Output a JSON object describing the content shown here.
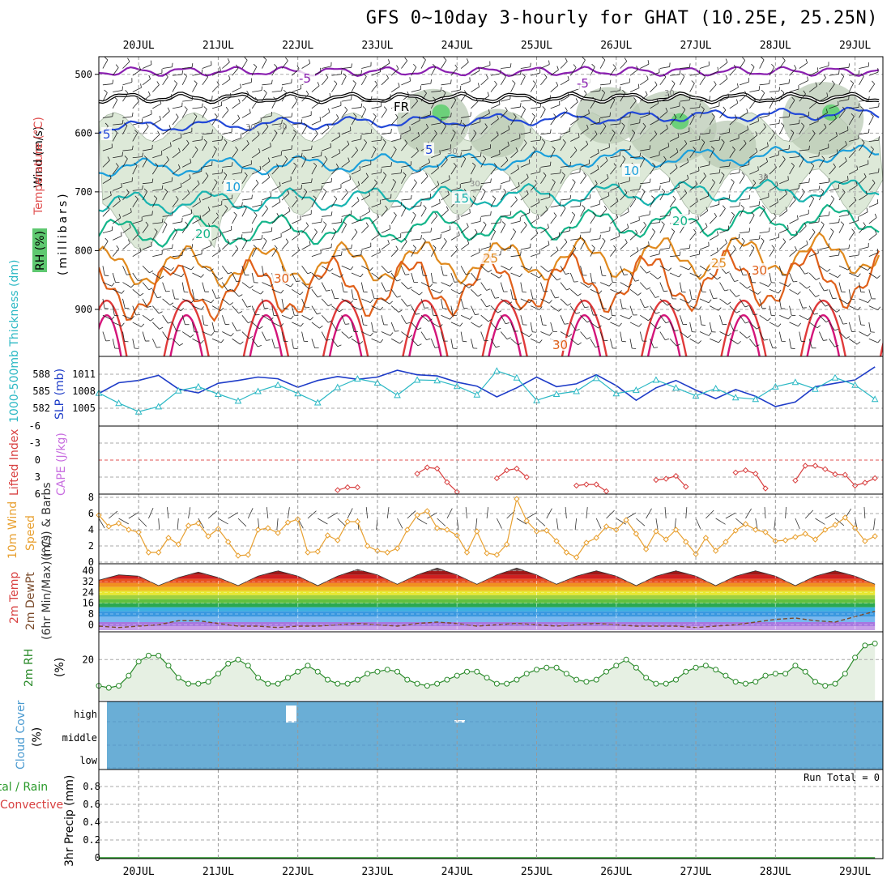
{
  "title": "GFS 0~10day 3-hourly for GHAT (10.25E, 25.25N)",
  "dates": [
    "20JUL",
    "21JUL",
    "22JUL",
    "23JUL",
    "24JUL",
    "25JUL",
    "26JUL",
    "27JUL",
    "28JUL",
    "29JUL"
  ],
  "panels": {
    "upper": {
      "ylabel_wind": "Wind (m/s)",
      "ylabel_temp": "Temperature (°C)",
      "ylabel_rh": "RH (%)",
      "ylabel_mb": "(millibars)",
      "ticks": [
        "500",
        "600",
        "700",
        "800",
        "900"
      ],
      "contour_labels": [
        "-5",
        "-5",
        "FR",
        "5",
        "5",
        "10",
        "10",
        "15",
        "20",
        "20",
        "25",
        "25",
        "30",
        "30",
        "30"
      ],
      "rh_labels": [
        "30",
        "30",
        "30",
        "30",
        "30",
        "30"
      ]
    },
    "slp": {
      "ylabel_thick": "1000-500mb Thickness (dm)",
      "ylabel_slp": "SLP (mb)",
      "left_ticks": [
        "588",
        "585",
        "582"
      ],
      "right_ticks": [
        "1011",
        "1008",
        "1005"
      ]
    },
    "li": {
      "ylabel_li": "Lifted Index",
      "ylabel_cape": "CAPE (J/kg)",
      "ticks": [
        "-6",
        "-3",
        "0",
        "3",
        "6"
      ]
    },
    "wind10": {
      "ylabel_main": "10m Wind",
      "ylabel_speed": "Speed",
      "ylabel_barbs": "(m/s) & Barbs",
      "ticks": [
        "8",
        "6",
        "4",
        "2",
        "0"
      ]
    },
    "temp2m": {
      "ylabel1": "2m Temp",
      "ylabel2": "2m DewPt",
      "ylabel3": "(6hr Min/Max) (°C)",
      "ticks": [
        "40",
        "32",
        "24",
        "16",
        "8",
        "0"
      ]
    },
    "rh2m": {
      "ylabel_main": "2m RH",
      "ylabel_unit": "(%)",
      "ticks": [
        "20"
      ]
    },
    "cloud": {
      "ylabel_main": "Cloud Cover",
      "ylabel_unit": "(%)",
      "levels": [
        "high",
        "middle",
        "low"
      ]
    },
    "precip": {
      "ylabel_total": "Total / Rain",
      "ylabel_conv": "Convective",
      "ylabel_main": "3hr Precip (mm)",
      "run_total": "Run Total = 0",
      "ticks": [
        "0.8",
        "0.6",
        "0.4",
        "0.2",
        "0"
      ]
    }
  },
  "colors": {
    "freezing": "#000000",
    "minus5": "#8a1fb0",
    "plus5": "#2248d8",
    "plus10": "#1ba0dc",
    "plus15": "#18b4b0",
    "plus20": "#15b58a",
    "plus25": "#e08a1e",
    "plus30": "#e0601a",
    "plus35": "#e03a3a",
    "plus40": "#d4157a",
    "rh_fill": "#dde9d8",
    "rh_dark": "#b9cab4",
    "rh_green": "#6cd07a",
    "slp_line": "#1e3cc8",
    "thick_line": "#2bb8c4",
    "li_line": "#d84040",
    "wind_line": "#e8a030",
    "dewpt_line": "#7a4a2a",
    "rh2m_line": "#2a8a2a",
    "rh2m_fill": "#e6f0e3",
    "cloud_fill": "#6aaed6"
  },
  "chart_data": [
    {
      "type": "line",
      "panel": "slp",
      "x_days": [
        19.5,
        19.75,
        20,
        20.25,
        20.5,
        20.75,
        21,
        21.25,
        21.5,
        21.75,
        22,
        22.25,
        22.5,
        22.75,
        23,
        23.25,
        23.5,
        23.75,
        24,
        24.25,
        24.5,
        24.75,
        25,
        25.25,
        25.5,
        25.75,
        26,
        26.25,
        26.5,
        26.75,
        27,
        27.25,
        27.5,
        27.75,
        28,
        28.25,
        28.5,
        28.75,
        29,
        29.25
      ],
      "series": [
        {
          "name": "SLP (mb)",
          "values": [
            1007.6,
            1009.5,
            1009.9,
            1010.8,
            1008.4,
            1007.7,
            1009.4,
            1009.9,
            1010.5,
            1010.2,
            1008.7,
            1009.9,
            1010.6,
            1010.1,
            1010.5,
            1011.7,
            1010.9,
            1010.7,
            1009.6,
            1008.9,
            1007.0,
            1008.6,
            1010.5,
            1008.8,
            1009.3,
            1010.9,
            1009.0,
            1006.4,
            1008.6,
            1009.9,
            1008.2,
            1006.7,
            1008.3,
            1007.1,
            1005.3,
            1006.1,
            1008.8,
            1009.4,
            1010.0,
            1012.3
          ]
        },
        {
          "name": "1000-500mb Thickness (dm)",
          "values": [
            584.7,
            582.9,
            581.4,
            582.3,
            585.1,
            585.8,
            584.5,
            583.3,
            585.0,
            586.1,
            584.6,
            583.0,
            585.7,
            587.2,
            586.5,
            584.3,
            587.0,
            586.9,
            585.9,
            584.4,
            588.6,
            587.4,
            583.4,
            584.5,
            585.0,
            587.3,
            584.6,
            585.2,
            587.0,
            585.6,
            584.2,
            585.5,
            583.9,
            583.6,
            585.8,
            586.6,
            585.4,
            587.4,
            586.1,
            583.6
          ]
        }
      ],
      "ylim_left": [
        580,
        590
      ],
      "ylim_right": [
        1003,
        1013
      ]
    },
    {
      "type": "line",
      "panel": "li",
      "x_days": [
        22.5,
        22.625,
        22.75,
        23.5,
        23.625,
        23.75,
        23.875,
        24,
        24.5,
        24.625,
        24.75,
        24.875,
        25.5,
        25.625,
        25.75,
        25.875,
        26.5,
        26.625,
        26.75,
        26.875,
        27.5,
        27.625,
        27.75,
        27.875,
        28.25,
        28.375,
        28.5,
        28.625,
        28.75,
        28.875,
        29,
        29.125,
        29.25
      ],
      "series": [
        {
          "name": "Lifted Index",
          "values": [
            5.3,
            4.8,
            4.8,
            2.4,
            1.3,
            1.5,
            3.9,
            5.6,
            3.2,
            1.8,
            1.5,
            3.0,
            4.5,
            4.3,
            4.3,
            5.5,
            3.5,
            3.3,
            2.8,
            4.7,
            2.2,
            1.8,
            2.4,
            5.0,
            3.6,
            1.0,
            1.0,
            1.6,
            2.5,
            2.6,
            4.5,
            4.0,
            3.2
          ]
        }
      ],
      "ylim": [
        6,
        -6
      ]
    },
    {
      "type": "line",
      "panel": "wind10",
      "x_days": [
        19.5,
        19.625,
        19.75,
        19.875,
        20,
        20.125,
        20.25,
        20.375,
        20.5,
        20.625,
        20.75,
        20.875,
        21,
        21.125,
        21.25,
        21.375,
        21.5,
        21.625,
        21.75,
        21.875,
        22,
        22.125,
        22.25,
        22.375,
        22.5,
        22.625,
        22.75,
        22.875,
        23,
        23.125,
        23.25,
        23.375,
        23.5,
        23.625,
        23.75,
        23.875,
        24,
        24.125,
        24.25,
        24.375,
        24.5,
        24.625,
        24.75,
        24.875,
        25,
        25.125,
        25.25,
        25.375,
        25.5,
        25.625,
        25.75,
        25.875,
        26,
        26.125,
        26.25,
        26.375,
        26.5,
        26.625,
        26.75,
        26.875,
        27,
        27.125,
        27.25,
        27.375,
        27.5,
        27.625,
        27.75,
        27.875,
        28,
        28.125,
        28.25,
        28.375,
        28.5,
        28.625,
        28.75,
        28.875,
        29,
        29.125,
        29.25
      ],
      "series": [
        {
          "name": "Speed",
          "values": [
            5.8,
            4.4,
            4.8,
            4.0,
            3.7,
            1.2,
            1.2,
            3.0,
            2.2,
            4.5,
            4.8,
            3.2,
            4.1,
            2.5,
            0.8,
            0.9,
            4.0,
            4.2,
            3.6,
            4.9,
            5.3,
            1.2,
            1.3,
            3.3,
            2.7,
            5.0,
            5.0,
            2.0,
            1.4,
            1.2,
            1.7,
            4.0,
            5.8,
            6.3,
            4.2,
            4.0,
            3.3,
            1.2,
            3.8,
            1.1,
            0.9,
            2.2,
            7.8,
            5.1,
            3.8,
            3.9,
            2.6,
            1.2,
            0.6,
            2.4,
            3.0,
            4.4,
            4.0,
            5.2,
            3.5,
            1.6,
            3.8,
            2.8,
            4.0,
            2.5,
            1.0,
            3.0,
            1.4,
            2.5,
            3.9,
            4.7,
            4.0,
            3.7,
            2.6,
            2.7,
            3.1,
            3.5,
            2.8,
            4.0,
            4.6,
            5.5,
            4.2,
            2.6,
            3.2
          ]
        }
      ],
      "ylim": [
        0,
        8
      ]
    },
    {
      "type": "area",
      "panel": "temp2m",
      "x_days": [
        19.5,
        19.75,
        20,
        20.25,
        20.5,
        20.75,
        21,
        21.25,
        21.5,
        21.75,
        22,
        22.25,
        22.5,
        22.75,
        23,
        23.25,
        23.5,
        23.75,
        24,
        24.25,
        24.5,
        24.75,
        25,
        25.25,
        25.5,
        25.75,
        26,
        26.25,
        26.5,
        26.75,
        27,
        27.25,
        27.5,
        27.75,
        28,
        28.25,
        28.5,
        28.75,
        29,
        29.25
      ],
      "series": [
        {
          "name": "2m Temp",
          "values": [
            33,
            37,
            36,
            29,
            35,
            39,
            35,
            29,
            36,
            40,
            36,
            29,
            36,
            41,
            37,
            30,
            37,
            42,
            37,
            30,
            37,
            42,
            37,
            30,
            36,
            40,
            36,
            29,
            36,
            40,
            36,
            29,
            36,
            40,
            36,
            29,
            36,
            40,
            36,
            30
          ]
        },
        {
          "name": "2m DewPt",
          "values": [
            -1,
            -2,
            -1,
            0,
            3,
            3,
            1,
            -1,
            -1,
            -2,
            -1,
            -1,
            0,
            1,
            0,
            -1,
            1,
            2,
            1,
            -1,
            0,
            1,
            0,
            -1,
            0,
            1,
            0,
            -1,
            -1,
            -1,
            -2,
            -1,
            0,
            2,
            4,
            5,
            3,
            2,
            6,
            10
          ]
        }
      ],
      "ylim": [
        -4,
        44
      ]
    },
    {
      "type": "area",
      "panel": "rh2m",
      "x_days": [
        19.5,
        19.625,
        19.75,
        19.875,
        20,
        20.125,
        20.25,
        20.375,
        20.5,
        20.625,
        20.75,
        20.875,
        21,
        21.125,
        21.25,
        21.375,
        21.5,
        21.625,
        21.75,
        21.875,
        22,
        22.125,
        22.25,
        22.375,
        22.5,
        22.625,
        22.75,
        22.875,
        23,
        23.125,
        23.25,
        23.375,
        23.5,
        23.625,
        23.75,
        23.875,
        24,
        24.125,
        24.25,
        24.375,
        24.5,
        24.625,
        24.75,
        24.875,
        25,
        25.125,
        25.25,
        25.375,
        25.5,
        25.625,
        25.75,
        25.875,
        26,
        26.125,
        26.25,
        26.375,
        26.5,
        26.625,
        26.75,
        26.875,
        27,
        27.125,
        27.25,
        27.375,
        27.5,
        27.625,
        27.75,
        27.875,
        28,
        28.125,
        28.25,
        28.375,
        28.5,
        28.625,
        28.75,
        28.875,
        29,
        29.125,
        29.25
      ],
      "series": [
        {
          "name": "2m RH",
          "values": [
            7,
            6,
            7,
            12,
            19,
            22,
            22,
            17,
            11,
            8,
            8,
            9,
            13,
            18,
            20,
            17,
            11,
            8,
            8,
            11,
            14,
            17,
            14,
            10,
            8,
            8,
            10,
            13,
            14,
            15,
            14,
            10,
            8,
            7,
            8,
            10,
            12,
            14,
            14,
            11,
            8,
            8,
            10,
            13,
            15,
            16,
            16,
            13,
            10,
            9,
            10,
            14,
            17,
            20,
            16,
            11,
            8,
            8,
            10,
            14,
            16,
            17,
            15,
            12,
            9,
            8,
            9,
            12,
            13,
            13,
            17,
            14,
            9,
            7,
            8,
            13,
            21,
            27,
            28
          ]
        }
      ],
      "ylim": [
        0,
        33
      ]
    },
    {
      "type": "line",
      "panel": "precip",
      "x_days": [
        19.5,
        29.25
      ],
      "series": [
        {
          "name": "3hr Precip (mm)",
          "values": [
            0,
            0
          ]
        }
      ],
      "ylim": [
        0,
        1.0
      ]
    }
  ]
}
